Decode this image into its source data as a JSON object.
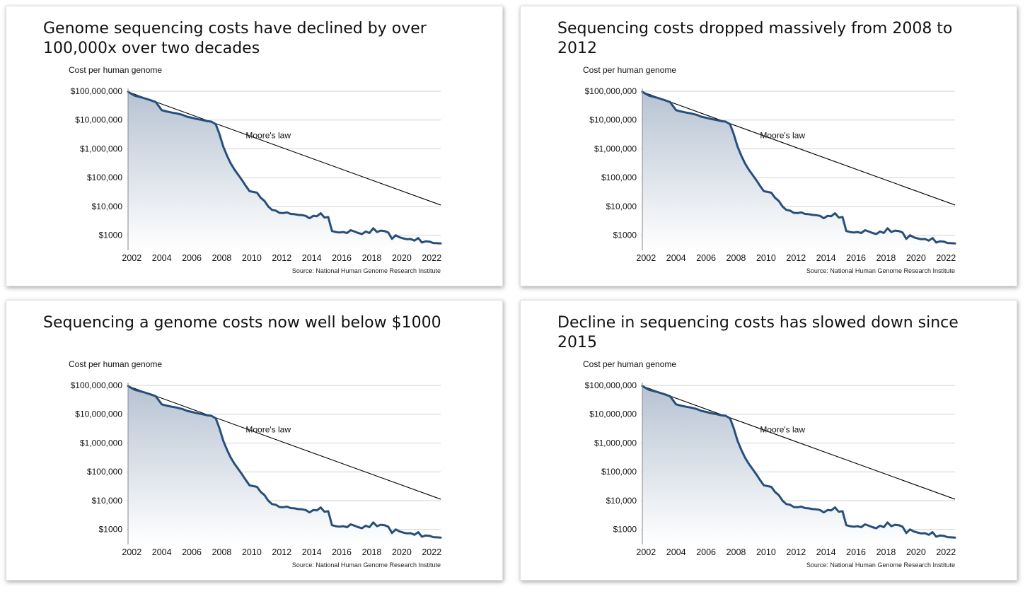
{
  "colors": {
    "cost_line": "#274f7c",
    "moore_line": "#000000",
    "gridline": "#d2d2d2",
    "fill_top": "#b7c3d3",
    "fill_bottom": "#ffffff"
  },
  "panels": [
    {
      "title": "Genome sequencing costs have declined by over 100,000x over two decades"
    },
    {
      "title": "Sequencing costs dropped massively from 2008 to 2012"
    },
    {
      "title": "Sequencing a genome costs now well below $1000"
    },
    {
      "title": "Decline in sequencing costs has slowed down since 2015"
    }
  ],
  "chart_data": {
    "type": "area",
    "ylabel": "Cost per human genome",
    "yscale": "log",
    "ylim": [
      300,
      100000000
    ],
    "xlim": [
      2001.75,
      2022.6
    ],
    "yticks": [
      {
        "value": 100000000,
        "label": "$100,000,000"
      },
      {
        "value": 10000000,
        "label": "$10,000,000"
      },
      {
        "value": 1000000,
        "label": "$1,000,000"
      },
      {
        "value": 100000,
        "label": "$100,000"
      },
      {
        "value": 10000,
        "label": "$10,000"
      },
      {
        "value": 1000,
        "label": "$1000"
      }
    ],
    "xticks": [
      {
        "value": 2002,
        "label": "2002"
      },
      {
        "value": 2004,
        "label": "2004"
      },
      {
        "value": 2006,
        "label": "2006"
      },
      {
        "value": 2008,
        "label": "2008"
      },
      {
        "value": 2010,
        "label": "2010"
      },
      {
        "value": 2012,
        "label": "2012"
      },
      {
        "value": 2014,
        "label": "2014"
      },
      {
        "value": 2016,
        "label": "2016"
      },
      {
        "value": 2018,
        "label": "2018"
      },
      {
        "value": 2020,
        "label": "2020"
      },
      {
        "value": 2022,
        "label": "2022"
      }
    ],
    "grid": true,
    "legend": "none",
    "source": "Source: National Human Genome Research Institute",
    "series": [
      {
        "name": "Cost per human genome",
        "x": [
          2001.75,
          2002.2,
          2002.7,
          2003.2,
          2003.6,
          2004.0,
          2004.3,
          2004.7,
          2005.0,
          2005.4,
          2005.7,
          2006.0,
          2006.3,
          2006.7,
          2007.0,
          2007.3,
          2007.6,
          2007.85,
          2008.1,
          2008.35,
          2008.6,
          2008.85,
          2009.1,
          2009.35,
          2009.6,
          2009.85,
          2010.1,
          2010.35,
          2010.6,
          2010.85,
          2011.1,
          2011.35,
          2011.6,
          2011.85,
          2012.1,
          2012.35,
          2012.6,
          2012.85,
          2013.1,
          2013.35,
          2013.6,
          2013.85,
          2014.1,
          2014.35,
          2014.6,
          2014.85,
          2015.1,
          2015.35,
          2015.6,
          2015.85,
          2016.1,
          2016.35,
          2016.6,
          2016.85,
          2017.1,
          2017.35,
          2017.6,
          2017.85,
          2018.1,
          2018.35,
          2018.6,
          2018.85,
          2019.1,
          2019.35,
          2019.6,
          2019.85,
          2020.1,
          2020.35,
          2020.6,
          2020.85,
          2021.1,
          2021.35,
          2021.6,
          2021.85,
          2022.1,
          2022.35,
          2022.6
        ],
        "values": [
          95000000,
          70000000,
          60000000,
          50000000,
          42000000,
          22000000,
          20000000,
          18000000,
          17000000,
          15000000,
          13000000,
          12000000,
          11000000,
          10000000,
          9200000,
          8800000,
          7200000,
          3200000,
          1200000,
          580000,
          310000,
          190000,
          125000,
          82000,
          52000,
          34000,
          32000,
          30000,
          20000,
          15500,
          10000,
          7600,
          7200,
          6000,
          5900,
          6200,
          5500,
          5400,
          5100,
          5000,
          4700,
          3900,
          4700,
          4600,
          5800,
          4100,
          4300,
          1400,
          1300,
          1250,
          1300,
          1200,
          1500,
          1350,
          1200,
          1100,
          1350,
          1200,
          1750,
          1300,
          1450,
          1400,
          1250,
          750,
          1000,
          850,
          780,
          730,
          740,
          650,
          800,
          560,
          620,
          600,
          540,
          530,
          520
        ]
      },
      {
        "name": "Moore's law",
        "x": [
          2001.75,
          2022.6
        ],
        "values": [
          95000000,
          11200
        ]
      }
    ],
    "annotations": [
      {
        "text": "Moore's law",
        "x": 2011.1,
        "y": 2300000
      }
    ]
  }
}
